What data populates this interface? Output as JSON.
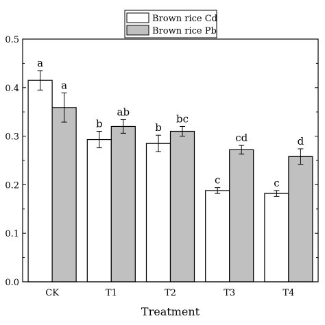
{
  "chart_data": {
    "type": "bar",
    "title": "",
    "xlabel": "Treatment",
    "ylabel": "",
    "ylim": [
      0,
      0.5
    ],
    "yticks": [
      "0.0",
      "0.1",
      "0.2",
      "0.3",
      "0.4",
      "0.5"
    ],
    "categories": [
      "CK",
      "T1",
      "T2",
      "T3",
      "T4"
    ],
    "series": [
      {
        "name": "Brown rice Cd",
        "color": "#ffffff",
        "values": [
          0.415,
          0.293,
          0.285,
          0.188,
          0.182
        ],
        "errors": [
          0.02,
          0.017,
          0.017,
          0.006,
          0.006
        ],
        "labels": [
          "a",
          "b",
          "b",
          "c",
          "c"
        ]
      },
      {
        "name": "Brown rice Pb",
        "color": "#c0c0c0",
        "values": [
          0.359,
          0.32,
          0.31,
          0.272,
          0.258
        ],
        "errors": [
          0.03,
          0.014,
          0.01,
          0.009,
          0.016
        ],
        "labels": [
          "a",
          "ab",
          "bc",
          "cd",
          "d"
        ]
      }
    ],
    "legend_position": "top-center",
    "grid": false
  }
}
